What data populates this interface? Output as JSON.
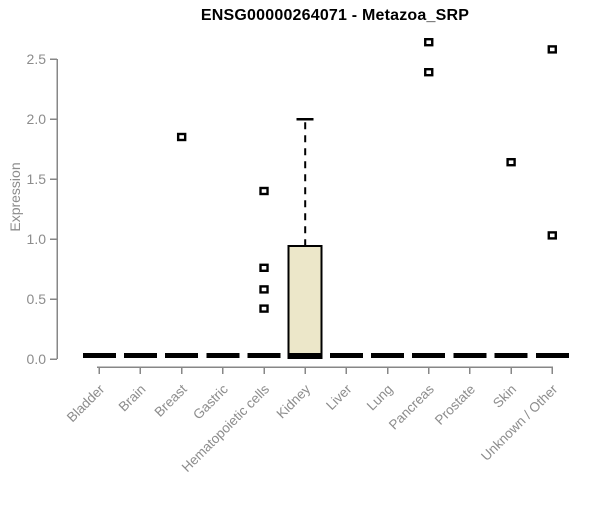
{
  "chart_data": {
    "type": "boxplot",
    "title": "ENSG00000264071 - Metazoa_SRP",
    "ylabel": "Expression",
    "xlabel": "",
    "ylim": [
      0,
      2.7
    ],
    "yticks": [
      0,
      0.5,
      1,
      1.5,
      2,
      2.5
    ],
    "grid": false,
    "legend": false,
    "categories": [
      "Bladder",
      "Brain",
      "Breast",
      "Gastric",
      "Hematopoietic cells",
      "Kidney",
      "Liver",
      "Lung",
      "Pancreas",
      "Prostate",
      "Skin",
      "Unknown / Other"
    ],
    "series": [
      {
        "name": "Bladder",
        "median": 0.03,
        "q1": 0,
        "q3": 0.03,
        "whisker_low": 0,
        "whisker_high": 0.03,
        "outliers": []
      },
      {
        "name": "Brain",
        "median": 0.03,
        "q1": 0,
        "q3": 0.03,
        "whisker_low": 0,
        "whisker_high": 0.03,
        "outliers": []
      },
      {
        "name": "Breast",
        "median": 0.03,
        "q1": 0,
        "q3": 0.03,
        "whisker_low": 0,
        "whisker_high": 0.03,
        "outliers": [
          1.85
        ]
      },
      {
        "name": "Gastric",
        "median": 0.03,
        "q1": 0,
        "q3": 0.03,
        "whisker_low": 0,
        "whisker_high": 0.03,
        "outliers": []
      },
      {
        "name": "Hematopoietic cells",
        "median": 0.03,
        "q1": 0,
        "q3": 0.03,
        "whisker_low": 0,
        "whisker_high": 0.03,
        "outliers": [
          0.42,
          0.58,
          0.76,
          1.4
        ]
      },
      {
        "name": "Kidney",
        "median": 0.03,
        "q1": 0.01,
        "q3": 0.94,
        "whisker_low": 0.01,
        "whisker_high": 2.0,
        "outliers": []
      },
      {
        "name": "Liver",
        "median": 0.03,
        "q1": 0,
        "q3": 0.03,
        "whisker_low": 0,
        "whisker_high": 0.03,
        "outliers": []
      },
      {
        "name": "Lung",
        "median": 0.03,
        "q1": 0,
        "q3": 0.03,
        "whisker_low": 0,
        "whisker_high": 0.03,
        "outliers": []
      },
      {
        "name": "Pancreas",
        "median": 0.03,
        "q1": 0,
        "q3": 0.03,
        "whisker_low": 0,
        "whisker_high": 0.03,
        "outliers": [
          2.39,
          2.64
        ]
      },
      {
        "name": "Prostate",
        "median": 0.03,
        "q1": 0,
        "q3": 0.03,
        "whisker_low": 0,
        "whisker_high": 0.03,
        "outliers": []
      },
      {
        "name": "Skin",
        "median": 0.03,
        "q1": 0,
        "q3": 0.03,
        "whisker_low": 0,
        "whisker_high": 0.03,
        "outliers": [
          1.64
        ]
      },
      {
        "name": "Unknown / Other",
        "median": 0.03,
        "q1": 0,
        "q3": 0.03,
        "whisker_low": 0,
        "whisker_high": 0.03,
        "outliers": [
          1.03,
          2.58
        ]
      }
    ],
    "colors": {
      "box_fill": "#ece7c9",
      "box_border": "#000000",
      "whisker": "#000000",
      "outlier": "#000000",
      "axis": "#878787",
      "tick_label": "#8c8c8c",
      "title": "#000000",
      "background": "#ffffff"
    }
  }
}
